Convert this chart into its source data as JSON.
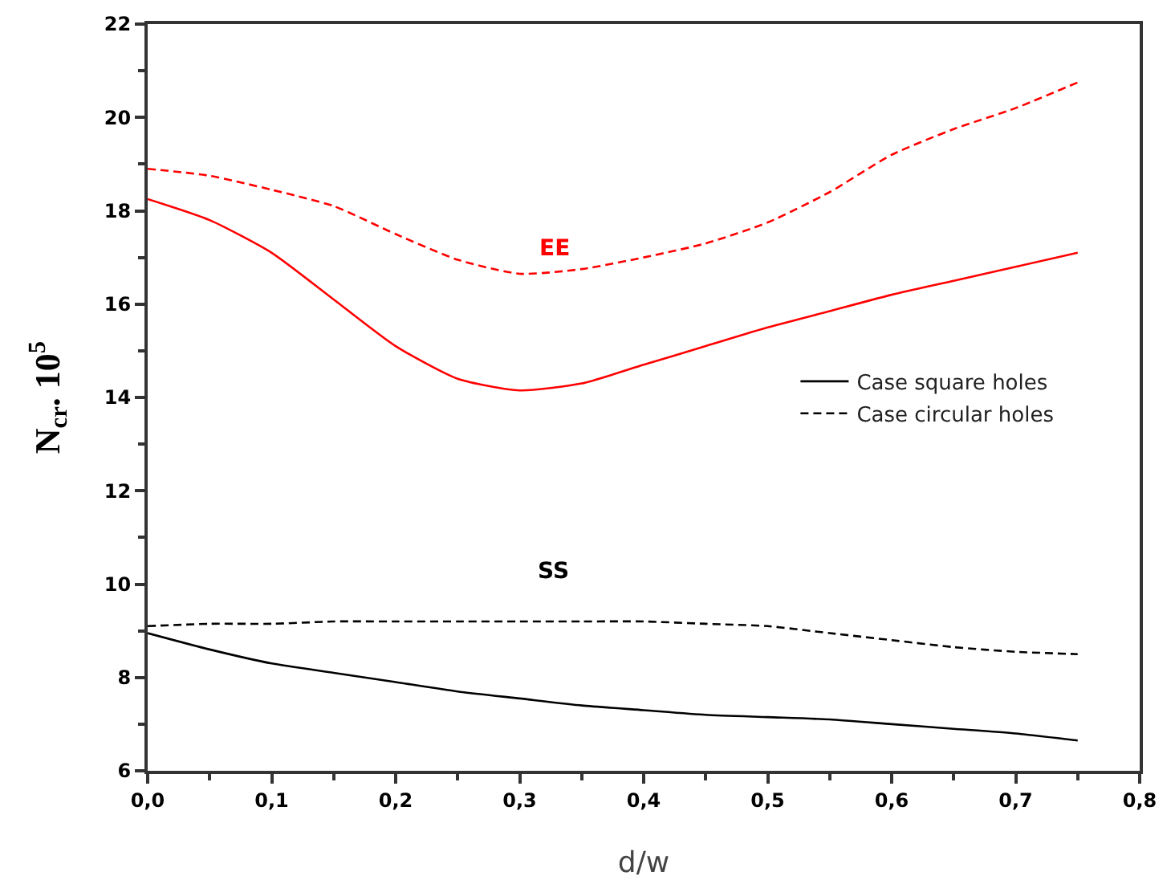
{
  "chart_data": {
    "type": "line",
    "xlabel": "d/w",
    "ylabel": "N$_{cr}$. 10$^{5}$",
    "x": [
      0,
      0.05,
      0.1,
      0.15,
      0.2,
      0.25,
      0.3,
      0.35,
      0.4,
      0.45,
      0.5,
      0.55,
      0.6,
      0.65,
      0.7,
      0.75
    ],
    "series": [
      {
        "name": "Case square holes",
        "color": "#000000",
        "line_style": "solid",
        "values": [
          8.95,
          8.6,
          8.3,
          8.1,
          7.9,
          7.7,
          7.55,
          7.4,
          7.3,
          7.2,
          7.15,
          7.1,
          7.0,
          6.9,
          6.8,
          6.65
        ]
      },
      {
        "name": "Case circular holes",
        "color": "#000000",
        "line_style": "dashed",
        "values": [
          9.1,
          9.15,
          9.15,
          9.2,
          9.2,
          9.2,
          9.2,
          9.2,
          9.2,
          9.15,
          9.1,
          8.95,
          8.8,
          8.65,
          8.55,
          8.5
        ]
      },
      {
        "color": "#ff0000",
        "line_style": "solid",
        "values": [
          18.25,
          17.8,
          17.1,
          16.1,
          15.1,
          14.4,
          14.15,
          14.3,
          14.7,
          15.1,
          15.5,
          15.85,
          16.2,
          16.5,
          16.8,
          17.1
        ]
      },
      {
        "color": "#ff0000",
        "line_style": "dashed",
        "values": [
          18.9,
          18.75,
          18.45,
          18.1,
          17.5,
          16.95,
          16.65,
          16.75,
          17.0,
          17.3,
          17.75,
          18.4,
          19.2,
          19.75,
          20.2,
          20.75
        ]
      }
    ],
    "annotations": [
      "EE",
      "SS"
    ],
    "xlim": [
      0,
      0.8
    ],
    "xticks": [
      {
        "value": 0,
        "label": "0,0"
      },
      {
        "value": 0.1,
        "label": "0,1"
      },
      {
        "value": 0.2,
        "label": "0,2"
      },
      {
        "value": 0.3,
        "label": "0,3"
      },
      {
        "value": 0.4,
        "label": "0,4"
      },
      {
        "value": 0.5,
        "label": "0,5"
      },
      {
        "value": 0.6,
        "label": "0,6"
      },
      {
        "value": 0.7,
        "label": "0,7"
      },
      {
        "value": 0.8,
        "label": "0,8"
      }
    ],
    "ylim": [
      6,
      22
    ],
    "yticks": [
      6,
      8,
      10,
      12,
      14,
      16,
      18,
      20,
      22
    ],
    "grid": false,
    "legend": "right",
    "marker": "none"
  }
}
